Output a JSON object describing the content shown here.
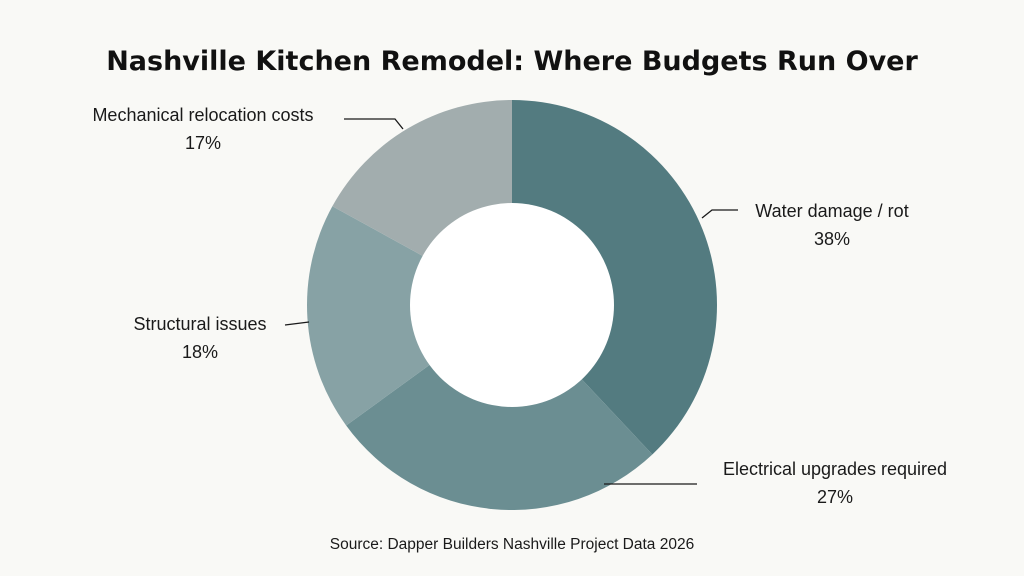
{
  "chart_data": {
    "type": "pie",
    "variant": "donut",
    "title": "Nashville Kitchen Remodel: Where Budgets Run Over",
    "source": "Source: Dapper Builders Nashville Project Data 2026",
    "start": "12 o'clock",
    "direction": "clockwise",
    "slices": [
      {
        "label": "Water damage / rot",
        "value": 38,
        "value_label": "38%",
        "color": "#537b80"
      },
      {
        "label": "Electrical upgrades required",
        "value": 27,
        "value_label": "27%",
        "color": "#6b8e92"
      },
      {
        "label": "Structural issues",
        "value": 18,
        "value_label": "18%",
        "color": "#87a2a5"
      },
      {
        "label": "Mechanical relocation costs",
        "value": 17,
        "value_label": "17%",
        "color": "#a2adae"
      }
    ],
    "background_color": "#f9f9f6"
  }
}
